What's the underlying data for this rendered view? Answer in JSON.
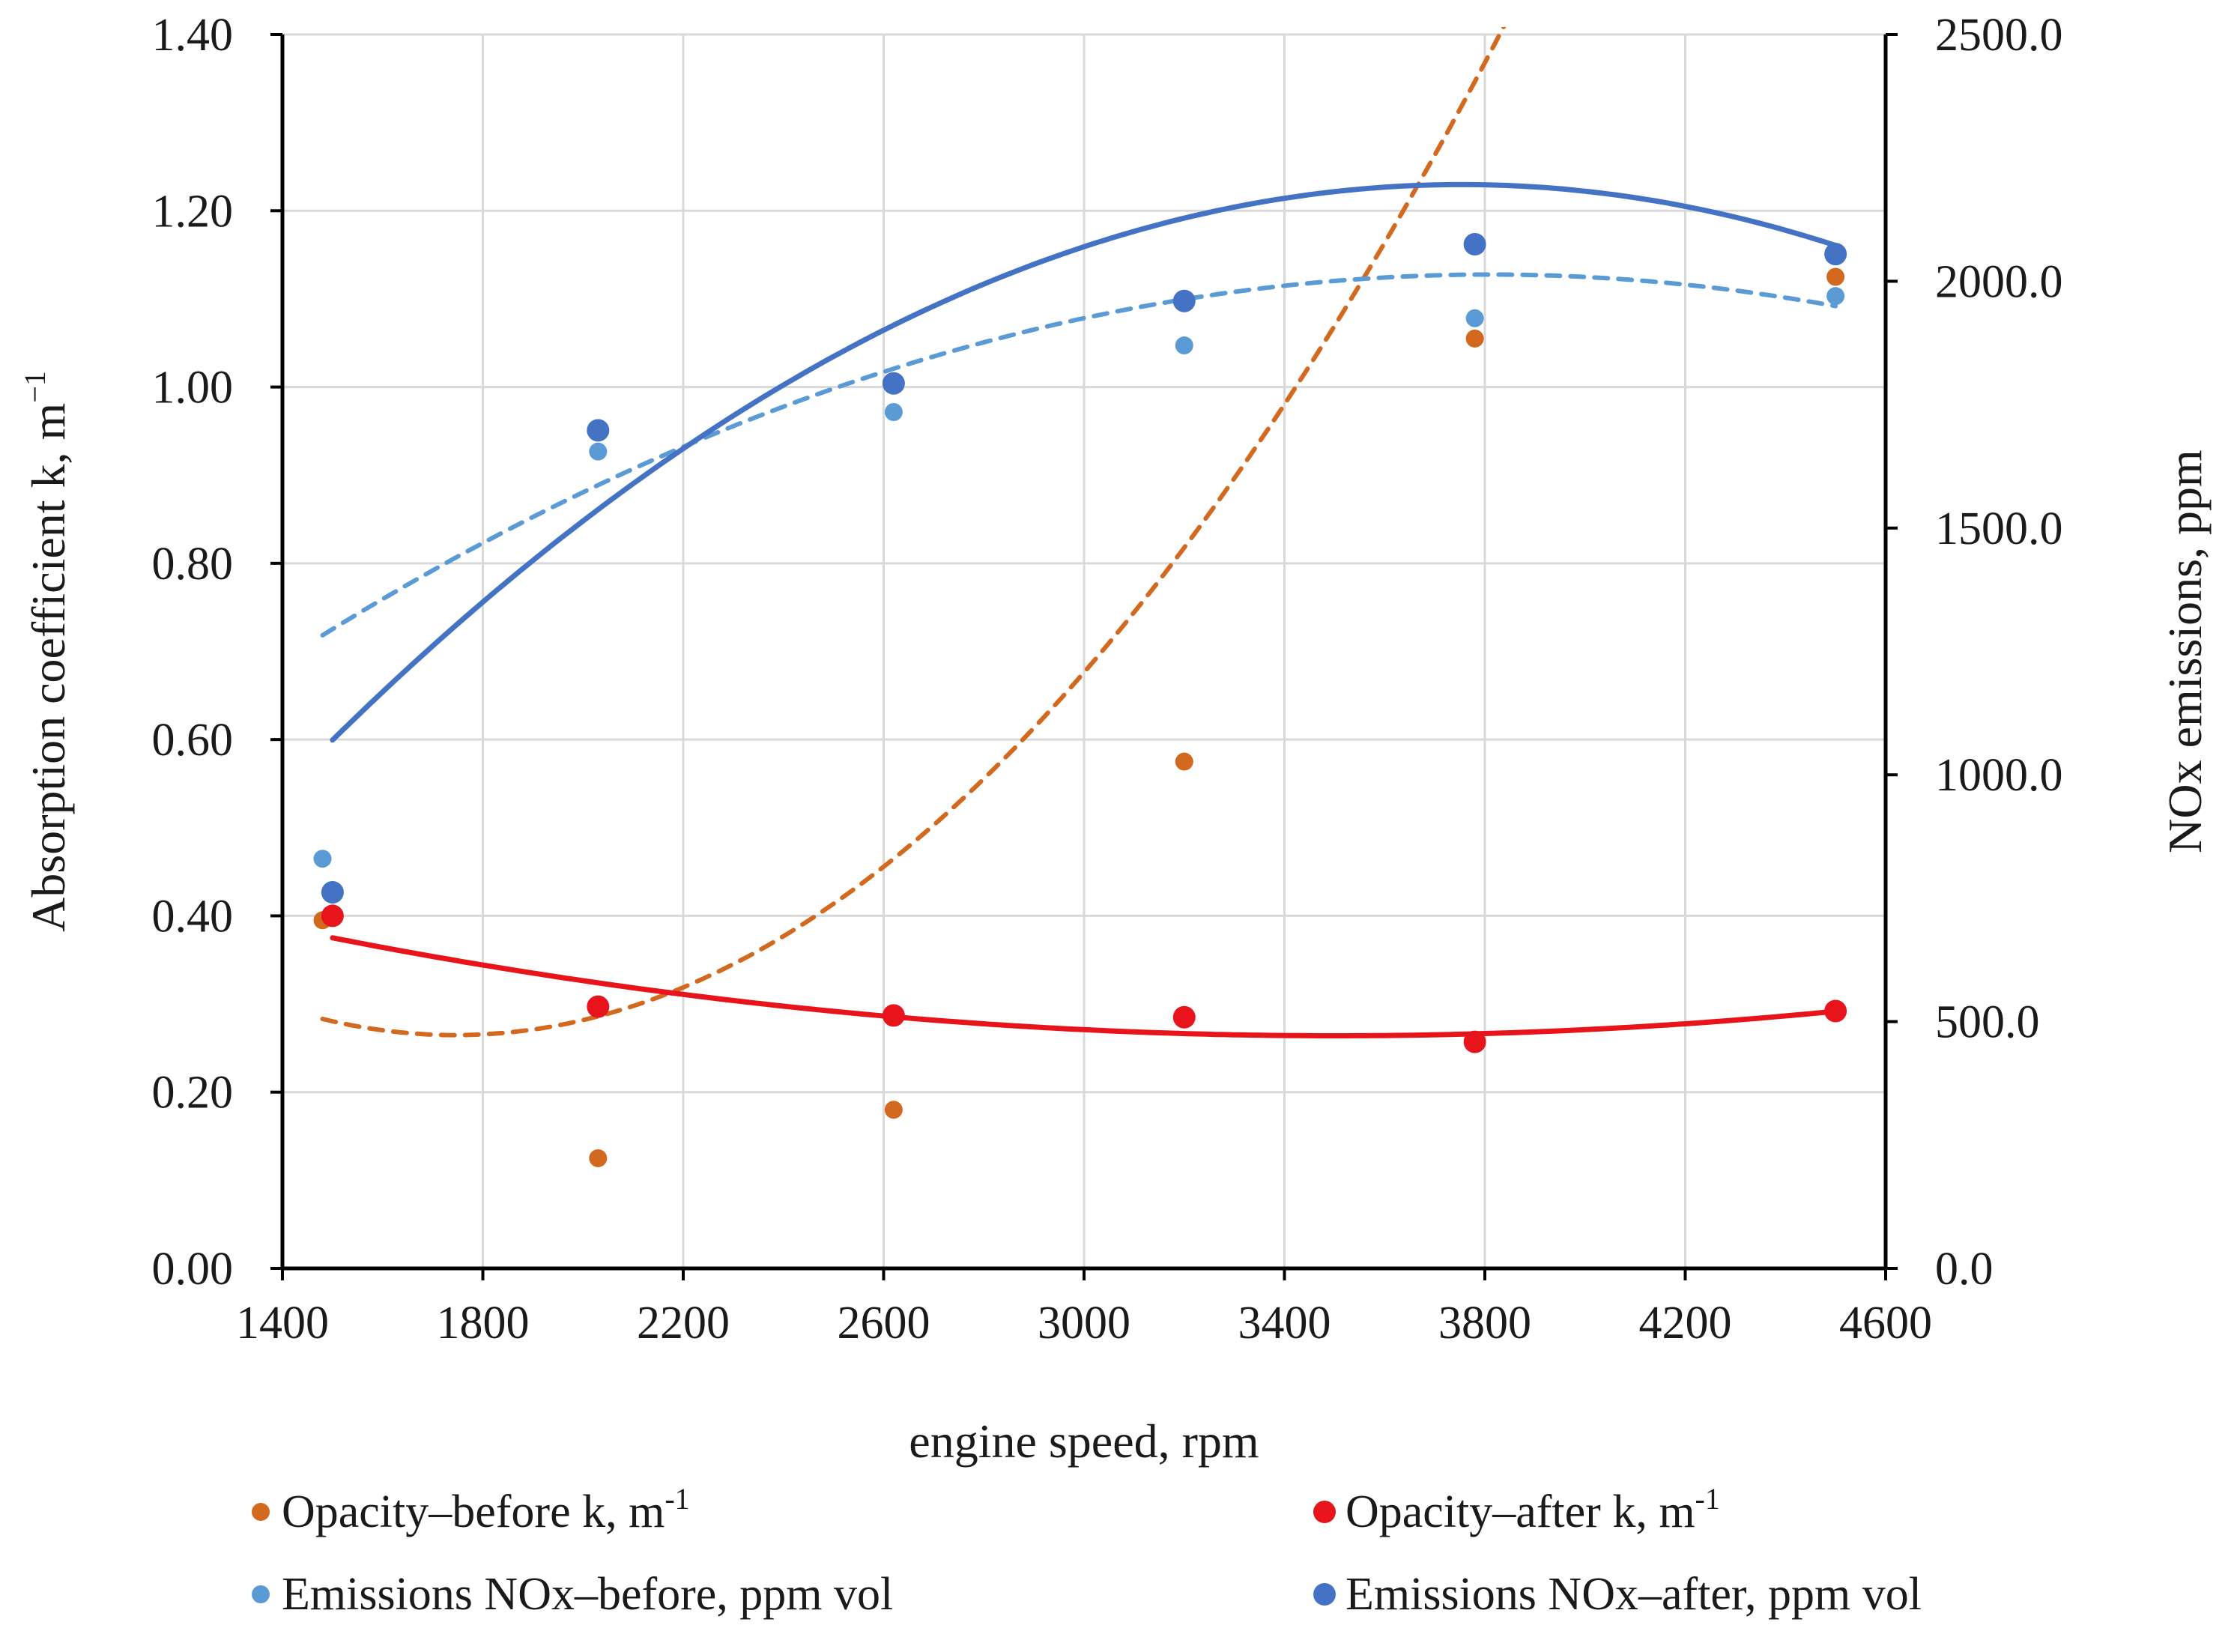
{
  "chart_data": {
    "type": "scatter",
    "title": "",
    "xlabel": "engine speed, rpm",
    "ylabel_left": "Absorption coefficient k, m",
    "ylabel_left_sup": "−1",
    "ylabel_right": "NOx emissions, ppm",
    "xlim": [
      1400,
      4600
    ],
    "ylim_left": [
      0,
      1.4
    ],
    "ylim_right": [
      0,
      2500
    ],
    "grid": true,
    "legend_position": "bottom",
    "x_ticks": [
      1400,
      1800,
      2200,
      2600,
      3000,
      3400,
      3800,
      4200,
      4600
    ],
    "x_tick_labels": [
      "1400",
      "1800",
      "2200",
      "2600",
      "3000",
      "3400",
      "3800",
      "4200",
      "4600"
    ],
    "y_left_ticks": [
      0,
      0.2,
      0.4,
      0.6,
      0.8,
      1.0,
      1.2,
      1.4
    ],
    "y_left_tick_labels": [
      "0.00",
      "0.20",
      "0.40",
      "0.60",
      "0.80",
      "1.00",
      "1.20",
      "1.40"
    ],
    "y_right_ticks": [
      0,
      500,
      1000,
      1500,
      2000,
      2500
    ],
    "y_right_tick_labels": [
      "0.0",
      "500.0",
      "1000.0",
      "1500.0",
      "2000.0",
      "2500.0"
    ],
    "series": [
      {
        "name": "Opacity–before k, m",
        "name_sup": "-1",
        "axis": "left",
        "color": "#d2691e",
        "marker_size": "small",
        "x": [
          1480,
          2030,
          2620,
          3200,
          3780,
          4500
        ],
        "y": [
          0.395,
          0.125,
          0.18,
          0.575,
          1.055,
          1.125
        ],
        "trend": {
          "type": "poly2",
          "style": "dashed",
          "x_range": [
            1480,
            4500
          ],
          "coef": [
            2.6116e-07,
            -0.0009113,
            1.0597
          ]
        }
      },
      {
        "name": "Opacity–after  k, m",
        "name_sup": "-1",
        "axis": "left",
        "color": "#e8141c",
        "marker_size": "large",
        "x": [
          1500,
          2030,
          2620,
          3200,
          3780,
          4500
        ],
        "y": [
          0.4,
          0.297,
          0.287,
          0.285,
          0.257,
          0.292
        ],
        "trend": {
          "type": "poly2",
          "style": "solid",
          "x_range": [
            1500,
            4500
          ],
          "coef": [
            2.7778e-08,
            -0.00019444,
            0.6042
          ]
        }
      },
      {
        "name": "Emissions NOx–before, ppm vol",
        "axis": "right",
        "color": "#5b9bd5",
        "marker_size": "small",
        "x": [
          1480,
          2030,
          2620,
          3200,
          3780,
          4500
        ],
        "y": [
          830,
          1655,
          1735,
          1870,
          1925,
          1970
        ],
        "trend": {
          "type": "poly2",
          "style": "dashed",
          "x_range": [
            1480,
            4500
          ],
          "coef": [
            -0.00013458,
            1.0256,
            59.63
          ]
        }
      },
      {
        "name": "Emissions NOx–after, ppm vol",
        "axis": "right",
        "color": "#4472c4",
        "marker_size": "large",
        "x": [
          1500,
          2030,
          2620,
          3200,
          3780,
          4500
        ],
        "y": [
          762,
          1698,
          1793,
          1960,
          2075,
          2055
        ],
        "trend": {
          "type": "poly2",
          "style": "solid",
          "x_range": [
            1500,
            4500
          ],
          "coef": [
            -0.00022154,
            1.6633,
            -926.1
          ]
        }
      }
    ]
  }
}
